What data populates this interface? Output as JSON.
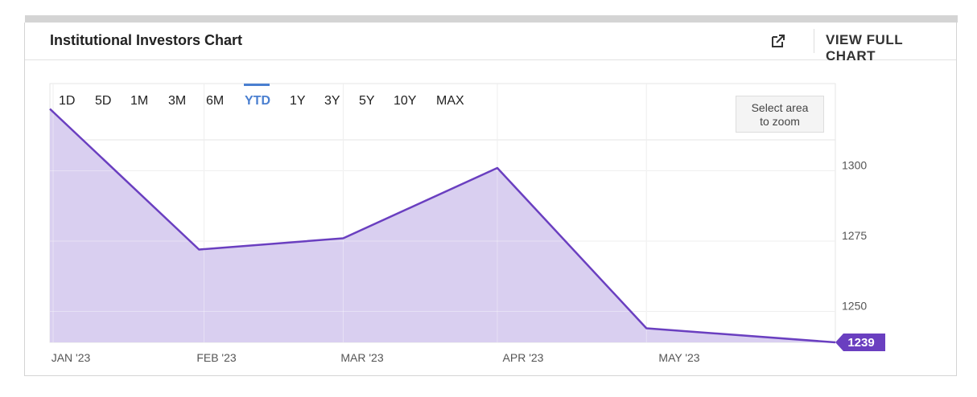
{
  "header": {
    "title": "Institutional Investors Chart",
    "external_icon": "external-link-icon",
    "view_full_label": "VIEW FULL CHART"
  },
  "range_selector": {
    "options": [
      "1D",
      "5D",
      "1M",
      "3M",
      "6M",
      "YTD",
      "1Y",
      "3Y",
      "5Y",
      "10Y",
      "MAX"
    ],
    "active": "YTD"
  },
  "zoom_hint": {
    "line1": "Select area",
    "line2": "to zoom"
  },
  "colors": {
    "line": "#6a3fc0",
    "fill": "#d9cff0",
    "active": "#4a7fd0",
    "badge_bg": "#6a3fc0",
    "badge_text": "#ffffff"
  },
  "chart_data": {
    "type": "area",
    "x": [
      "2023-01-01",
      "2023-01-31",
      "2023-03-01",
      "2023-04-01",
      "2023-05-01",
      "2023-06-08"
    ],
    "series": [
      {
        "values": [
          1322,
          1272,
          1276,
          1301,
          1244,
          1239
        ]
      }
    ],
    "x_tick_labels": [
      "JAN '23",
      "FEB '23",
      "MAR '23",
      "APR '23",
      "MAY '23"
    ],
    "y_tick_labels": [
      "1300",
      "1275",
      "1250"
    ],
    "y_ticks": [
      1300,
      1275,
      1250
    ],
    "ylim": [
      1239,
      1331
    ],
    "last_value_label": "1239",
    "grid": true,
    "y_axis_position": "right"
  }
}
